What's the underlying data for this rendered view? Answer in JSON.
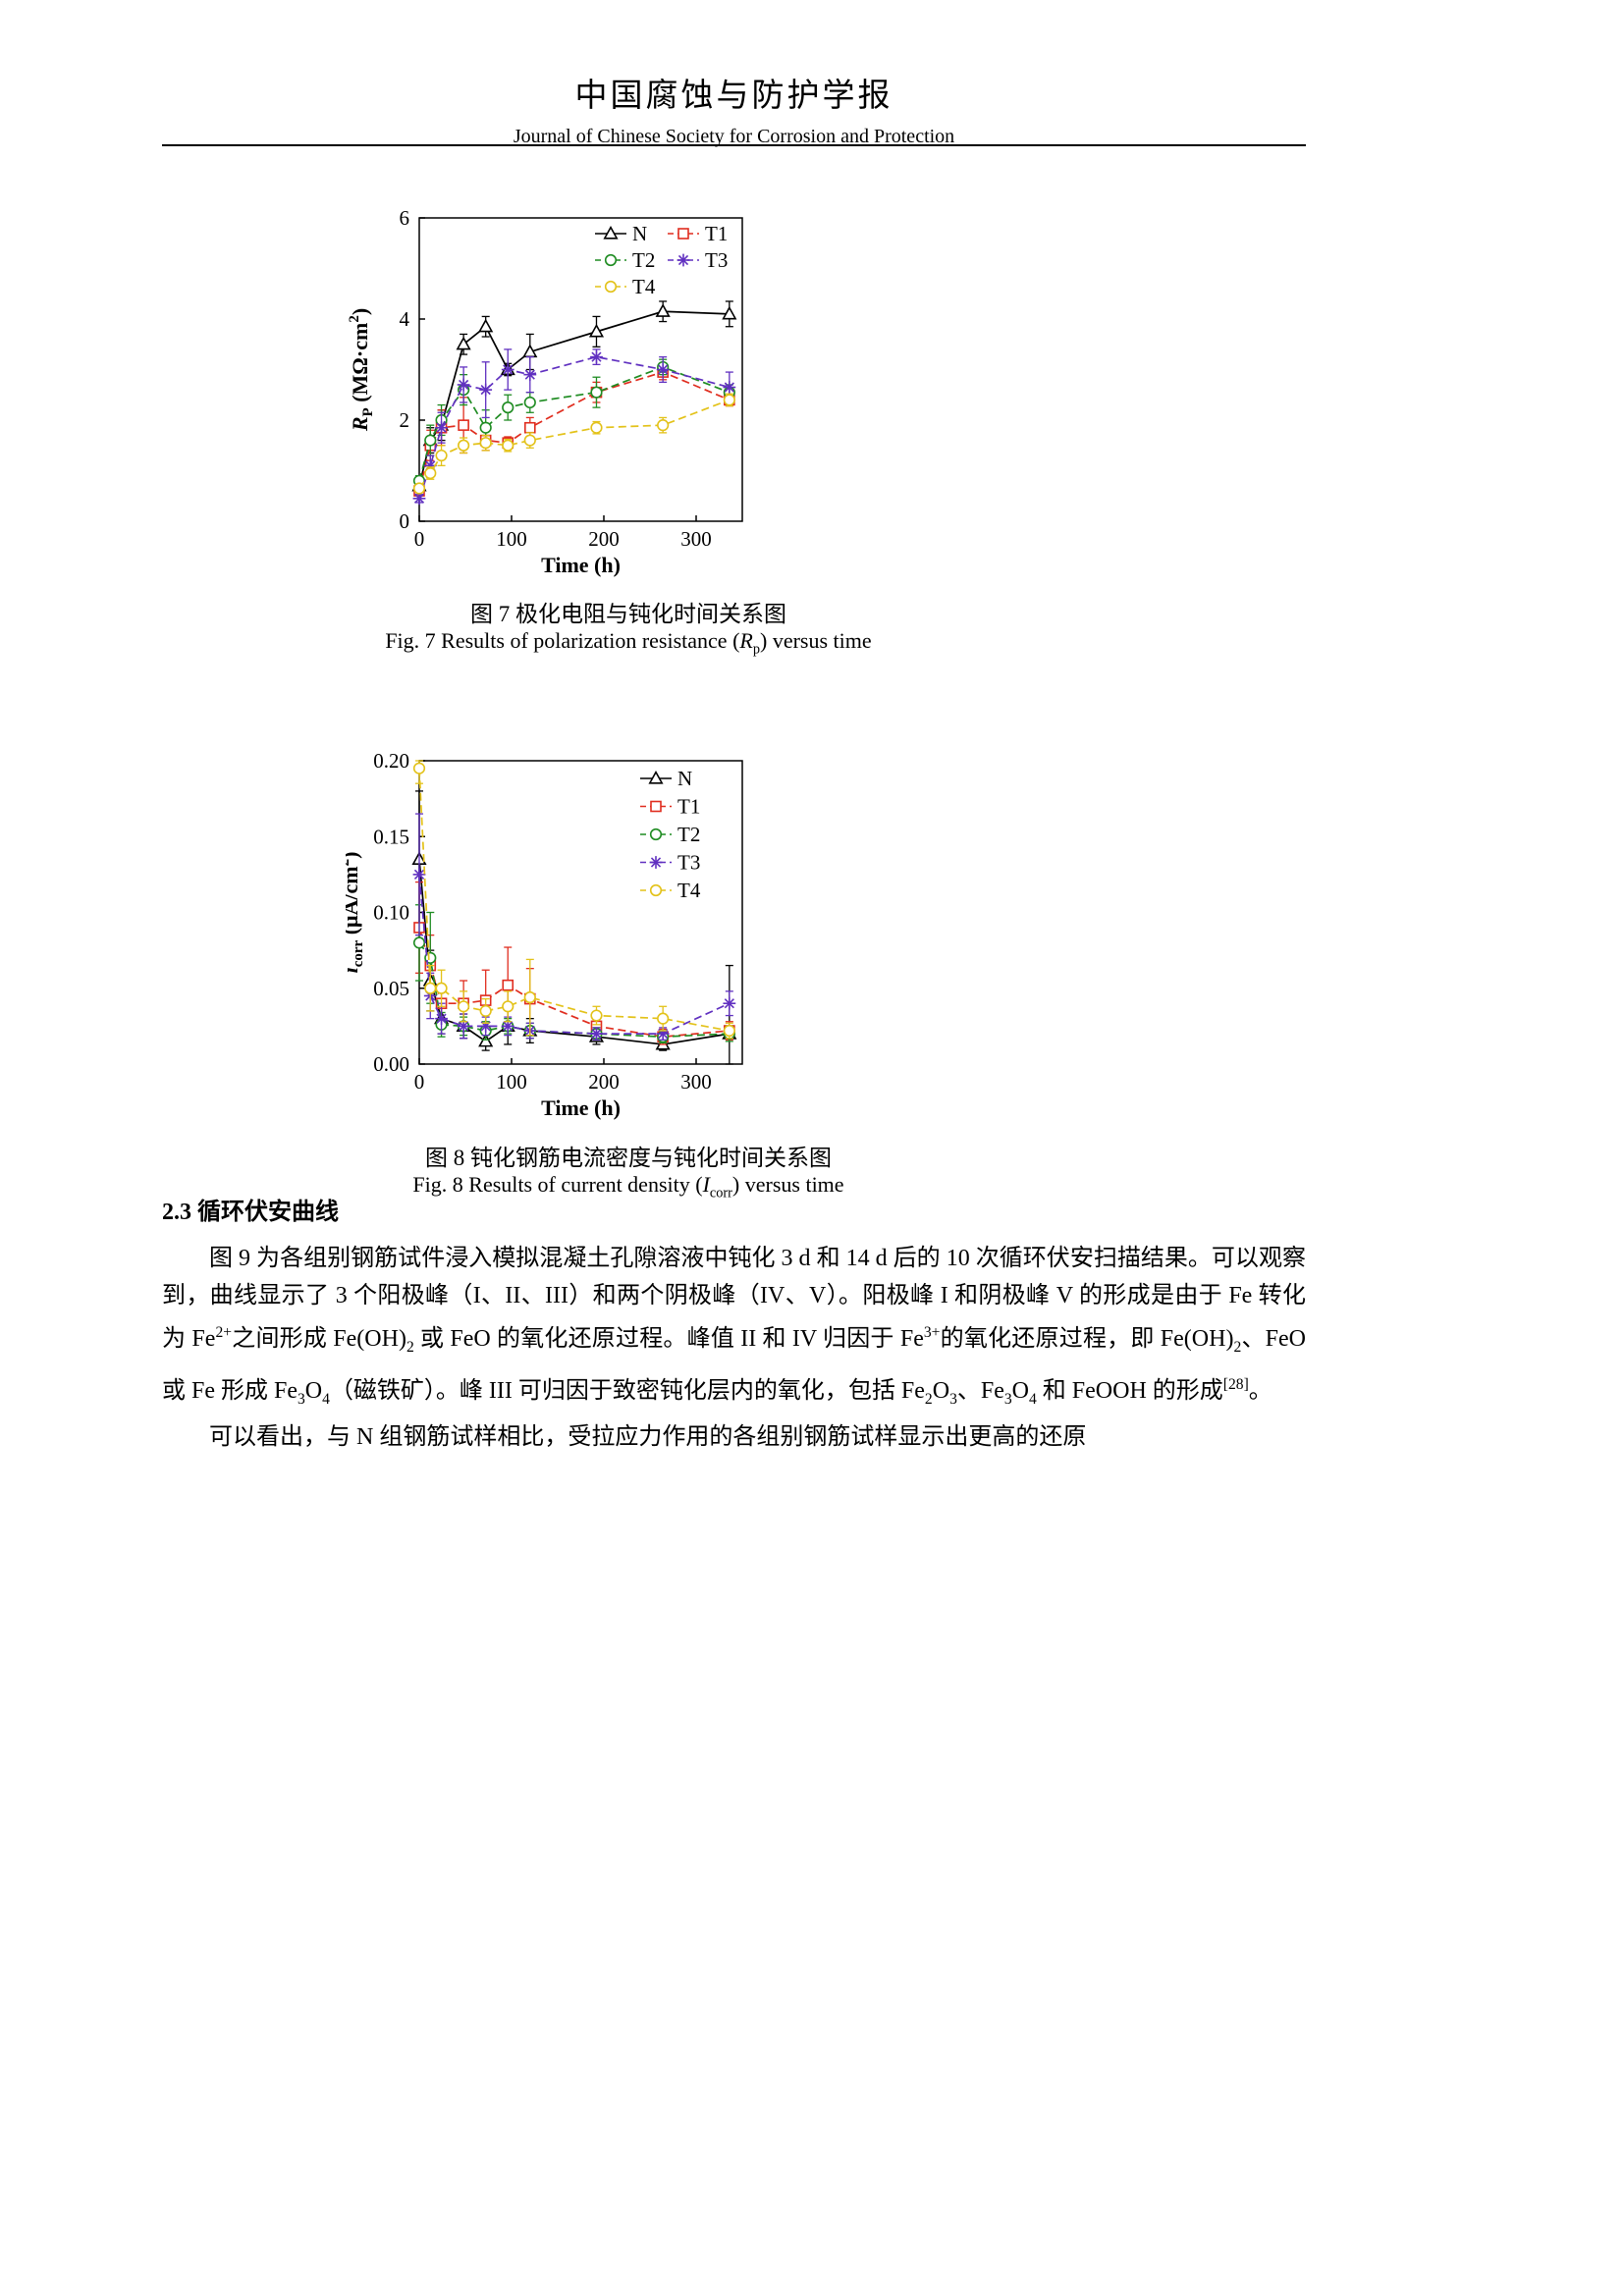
{
  "page": {
    "journal_title_zh": "中国腐蚀与防护学报",
    "journal_title_en": "Journal of Chinese Society for Corrosion and Protection"
  },
  "figure7": {
    "caption_zh": "图 7  极化电阻与钝化时间关系图",
    "caption_en_rich": [
      {
        "t": "Fig. 7 Results of polarization resistance (",
        "s": ""
      },
      {
        "t": "R",
        "s": "i"
      },
      {
        "t": "p",
        "s": "sub"
      },
      {
        "t": ") versus time",
        "s": ""
      }
    ]
  },
  "figure8": {
    "caption_zh": "图 8  钝化钢筋电流密度与钝化时间关系图",
    "caption_en_rich": [
      {
        "t": "Fig. 8 Results of current density (",
        "s": ""
      },
      {
        "t": "I",
        "s": "i"
      },
      {
        "t": "corr",
        "s": "sub"
      },
      {
        "t": ") versus time",
        "s": ""
      }
    ]
  },
  "section": {
    "heading": "2.3  循环伏安曲线"
  },
  "paragraphs": [
    {
      "rich": [
        {
          "t": "图 9 为各组别钢筋试件浸入模拟混凝土孔隙溶液中钝化 3 d 和 14 d 后的 10 次循环伏安扫描结果。可以观察到，曲线显示了 3 个阳极峰（I、II、III）和两个阴极峰（IV、V）。阳极峰 I 和阴极峰 V 的形成是由于 Fe 转化为 Fe",
          "s": ""
        },
        {
          "t": "2+",
          "s": "sup"
        },
        {
          "t": "之间形成 Fe(OH)",
          "s": ""
        },
        {
          "t": "2",
          "s": "sub"
        },
        {
          "t": " 或 FeO 的氧化还原过程。峰值 II 和 IV 归因于 Fe",
          "s": ""
        },
        {
          "t": "3+",
          "s": "sup"
        },
        {
          "t": "的氧化还原过程，即 Fe(OH)",
          "s": ""
        },
        {
          "t": "2",
          "s": "sub"
        },
        {
          "t": "、FeO 或 Fe 形成 Fe",
          "s": ""
        },
        {
          "t": "3",
          "s": "sub"
        },
        {
          "t": "O",
          "s": ""
        },
        {
          "t": "4",
          "s": "sub"
        },
        {
          "t": "（磁铁矿）。峰 III 可归因于致密钝化层内的氧化，包括 Fe",
          "s": ""
        },
        {
          "t": "2",
          "s": "sub"
        },
        {
          "t": "O",
          "s": ""
        },
        {
          "t": "3",
          "s": "sub"
        },
        {
          "t": "、Fe",
          "s": ""
        },
        {
          "t": "3",
          "s": "sub"
        },
        {
          "t": "O",
          "s": ""
        },
        {
          "t": "4",
          "s": "sub"
        },
        {
          "t": " 和 FeOOH 的形成",
          "s": ""
        },
        {
          "t": "[28]",
          "s": "sup"
        },
        {
          "t": "。",
          "s": ""
        }
      ]
    },
    {
      "rich": [
        {
          "t": "可以看出，与 N 组钢筋试样相比，受拉应力作用的各组别钢筋试样显示出更高的还原",
          "s": ""
        }
      ]
    }
  ],
  "chart_data": [
    {
      "type": "line",
      "title": "",
      "xlabel": "Time (h)",
      "ylabel": "RP (MΩ·cm²)",
      "ylabel_rich": [
        {
          "t": "R",
          "s": "i"
        },
        {
          "t": "P",
          "s": "sub"
        },
        {
          "t": " (MΩ·cm",
          "s": ""
        },
        {
          "t": "2",
          "s": "sup"
        },
        {
          "t": ")",
          "s": ""
        }
      ],
      "xlim": [
        0,
        350
      ],
      "ylim": [
        0,
        6
      ],
      "xticks": [
        0,
        100,
        200,
        300
      ],
      "xtick_labels": [
        "0",
        "100",
        "200",
        "300"
      ],
      "yticks": [
        0,
        2,
        4,
        6
      ],
      "ytick_labels": [
        "0",
        "2",
        "4",
        "6"
      ],
      "grid": false,
      "legend_position": "inside-top-right",
      "x": [
        0,
        12,
        24,
        48,
        72,
        96,
        120,
        192,
        264,
        336
      ],
      "series": [
        {
          "name": "N",
          "color": "#000000",
          "marker": "triangle",
          "line": "solid",
          "values": [
            0.7,
            1.6,
            1.9,
            3.5,
            3.85,
            3.0,
            3.35,
            3.75,
            4.15,
            4.1
          ],
          "err": [
            0.1,
            0.25,
            0.3,
            0.2,
            0.2,
            0.12,
            0.35,
            0.3,
            0.2,
            0.25
          ]
        },
        {
          "name": "T1",
          "color": "#e02d1f",
          "marker": "square",
          "line": "dashed",
          "values": [
            0.6,
            1.5,
            1.85,
            1.9,
            1.6,
            1.55,
            1.85,
            2.55,
            2.95,
            2.4
          ],
          "err": [
            0.08,
            0.3,
            0.35,
            0.55,
            0.2,
            0.12,
            0.2,
            0.2,
            0.15,
            0.12
          ]
        },
        {
          "name": "T2",
          "color": "#1f8c22",
          "marker": "circle",
          "line": "dashed",
          "values": [
            0.8,
            1.6,
            2.0,
            2.6,
            1.85,
            2.25,
            2.35,
            2.55,
            3.05,
            2.55
          ],
          "err": [
            0.1,
            0.3,
            0.3,
            0.3,
            0.35,
            0.25,
            0.2,
            0.3,
            0.15,
            0.15
          ]
        },
        {
          "name": "T3",
          "color": "#6030c0",
          "marker": "asterisk",
          "line": "dashed",
          "values": [
            0.45,
            1.1,
            1.85,
            2.7,
            2.6,
            3.0,
            2.9,
            3.25,
            3.0,
            2.65
          ],
          "err": [
            0.08,
            0.2,
            0.3,
            0.35,
            0.55,
            0.4,
            0.35,
            0.15,
            0.25,
            0.3
          ]
        },
        {
          "name": "T4",
          "color": "#e3c219",
          "marker": "circle",
          "line": "dashed",
          "values": [
            0.65,
            0.95,
            1.3,
            1.5,
            1.55,
            1.5,
            1.6,
            1.85,
            1.9,
            2.4
          ],
          "err": [
            0.08,
            0.12,
            0.2,
            0.15,
            0.15,
            0.12,
            0.15,
            0.12,
            0.15,
            0.12
          ]
        }
      ]
    },
    {
      "type": "line",
      "title": "",
      "xlabel": "Time (h)",
      "ylabel": "icorr (μA/cm²)",
      "ylabel_rich": [
        {
          "t": "i",
          "s": "i"
        },
        {
          "t": "corr",
          "s": "sub"
        },
        {
          "t": " (μA/cm",
          "s": ""
        },
        {
          "t": "2",
          "s": "sup"
        },
        {
          "t": ")",
          "s": ""
        }
      ],
      "xlim": [
        0,
        350
      ],
      "ylim": [
        0,
        0.2
      ],
      "xticks": [
        0,
        100,
        200,
        300
      ],
      "xtick_labels": [
        "0",
        "100",
        "200",
        "300"
      ],
      "yticks": [
        0,
        0.05,
        0.1,
        0.15,
        0.2
      ],
      "ytick_labels": [
        "0.00",
        "0.05",
        "0.10",
        "0.15",
        "0.20"
      ],
      "grid": false,
      "legend_position": "inside-top-right",
      "x": [
        0,
        12,
        24,
        48,
        72,
        96,
        120,
        192,
        264,
        336
      ],
      "series": [
        {
          "name": "N",
          "color": "#000000",
          "marker": "triangle",
          "line": "solid",
          "values": [
            0.135,
            0.055,
            0.03,
            0.025,
            0.015,
            0.025,
            0.022,
            0.018,
            0.013,
            0.02
          ],
          "err": [
            0.045,
            0.02,
            0.01,
            0.008,
            0.006,
            0.012,
            0.008,
            0.005,
            0.004,
            0.045
          ]
        },
        {
          "name": "T1",
          "color": "#e02d1f",
          "marker": "square",
          "line": "dashed",
          "values": [
            0.09,
            0.065,
            0.04,
            0.04,
            0.042,
            0.052,
            0.043,
            0.025,
            0.018,
            0.022
          ],
          "err": [
            0.03,
            0.02,
            0.012,
            0.015,
            0.02,
            0.025,
            0.02,
            0.008,
            0.005,
            0.006
          ]
        },
        {
          "name": "T2",
          "color": "#1f8c22",
          "marker": "circle",
          "line": "dashed",
          "values": [
            0.08,
            0.07,
            0.026,
            0.025,
            0.022,
            0.025,
            0.022,
            0.02,
            0.018,
            0.02
          ],
          "err": [
            0.025,
            0.03,
            0.008,
            0.006,
            0.006,
            0.005,
            0.005,
            0.004,
            0.004,
            0.005
          ]
        },
        {
          "name": "T3",
          "color": "#6030c0",
          "marker": "asterisk",
          "line": "dashed",
          "values": [
            0.125,
            0.045,
            0.03,
            0.025,
            0.025,
            0.025,
            0.022,
            0.02,
            0.02,
            0.04
          ],
          "err": [
            0.04,
            0.015,
            0.01,
            0.008,
            0.006,
            0.006,
            0.005,
            0.004,
            0.004,
            0.008
          ]
        },
        {
          "name": "T4",
          "color": "#e3c219",
          "marker": "circle",
          "line": "dashed",
          "values": [
            0.195,
            0.05,
            0.05,
            0.038,
            0.035,
            0.038,
            0.044,
            0.032,
            0.03,
            0.022
          ],
          "err": [
            0.01,
            0.015,
            0.012,
            0.01,
            0.008,
            0.01,
            0.025,
            0.006,
            0.008,
            0.005
          ]
        }
      ]
    }
  ]
}
